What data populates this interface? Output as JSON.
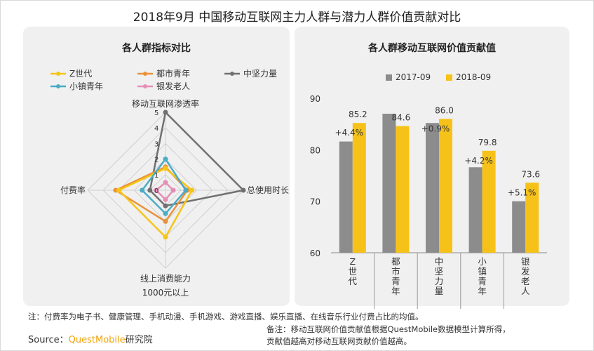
{
  "title": "2018年9月 中国移动互联网主力人群与潜力人群价值贡献对比",
  "left_panel_title": "各人群指标对比",
  "right_panel_title": "各人群移动互联网价值贡献值",
  "colors": {
    "z_gen": "#f5c518",
    "urban_youth": "#e8923a",
    "middle_aged": "#707070",
    "town_youth": "#4bacc6",
    "silver": "#e58fb8",
    "bar_2017": "#8c8c8c",
    "bar_2018": "#f6c21a"
  },
  "chart_data": [
    {
      "type": "radar",
      "title": "各人群指标对比",
      "axes": [
        "移动互联网渗透率",
        "总使用时长",
        "线上消费能力",
        "付费率"
      ],
      "axis_sublabels": [
        "",
        "",
        "1000元以上",
        ""
      ],
      "tick_labels": [
        "0",
        "1",
        "2",
        "3",
        "4",
        "5"
      ],
      "range": [
        0,
        5
      ],
      "series": [
        {
          "name": "Z世代",
          "values": [
            1.4,
            1.7,
            3.0,
            3.0
          ]
        },
        {
          "name": "都市青年",
          "values": [
            1.5,
            1.4,
            2.0,
            3.2
          ]
        },
        {
          "name": "中坚力量",
          "values": [
            5.0,
            5.0,
            1.0,
            1.0
          ]
        },
        {
          "name": "小镇青年",
          "values": [
            2.0,
            1.3,
            1.5,
            1.5
          ]
        },
        {
          "name": "银发老人",
          "values": [
            0.5,
            0.5,
            0.6,
            0.6
          ]
        }
      ]
    },
    {
      "type": "bar",
      "title": "各人群移动互联网价值贡献值",
      "categories": [
        "Z世代",
        "都市青年",
        "中坚力量",
        "小镇青年",
        "银发老人"
      ],
      "series": [
        {
          "name": "2017-09",
          "values": [
            81.6,
            87.0,
            85.2,
            76.6,
            70.0
          ]
        },
        {
          "name": "2018-09",
          "values": [
            85.2,
            84.6,
            86.0,
            79.8,
            73.6
          ]
        }
      ],
      "value_labels": [
        "85.2",
        "84.6",
        "86.0",
        "79.8",
        "73.6"
      ],
      "change_labels": [
        "+4.4%",
        "",
        "+0.9%",
        "+4.2%",
        "+5.1%"
      ],
      "y_ticks": [
        "90",
        "80",
        "70",
        "60"
      ],
      "ylim": [
        60,
        90
      ]
    }
  ],
  "note": "注：付费率为电子书、健康管理、手机动漫、手机游戏、游戏直播、娱乐直播、在线音乐行业付费占比的均值。",
  "source": {
    "label": "Source：",
    "brand": "QuestMobile",
    "suffix": "研究院"
  },
  "remark": {
    "line1": "备注：移动互联网价值贡献值根据QuestMobile数据模型计算所得，",
    "line2": "贡献值越高对移动互联网贡献价值越高。"
  }
}
